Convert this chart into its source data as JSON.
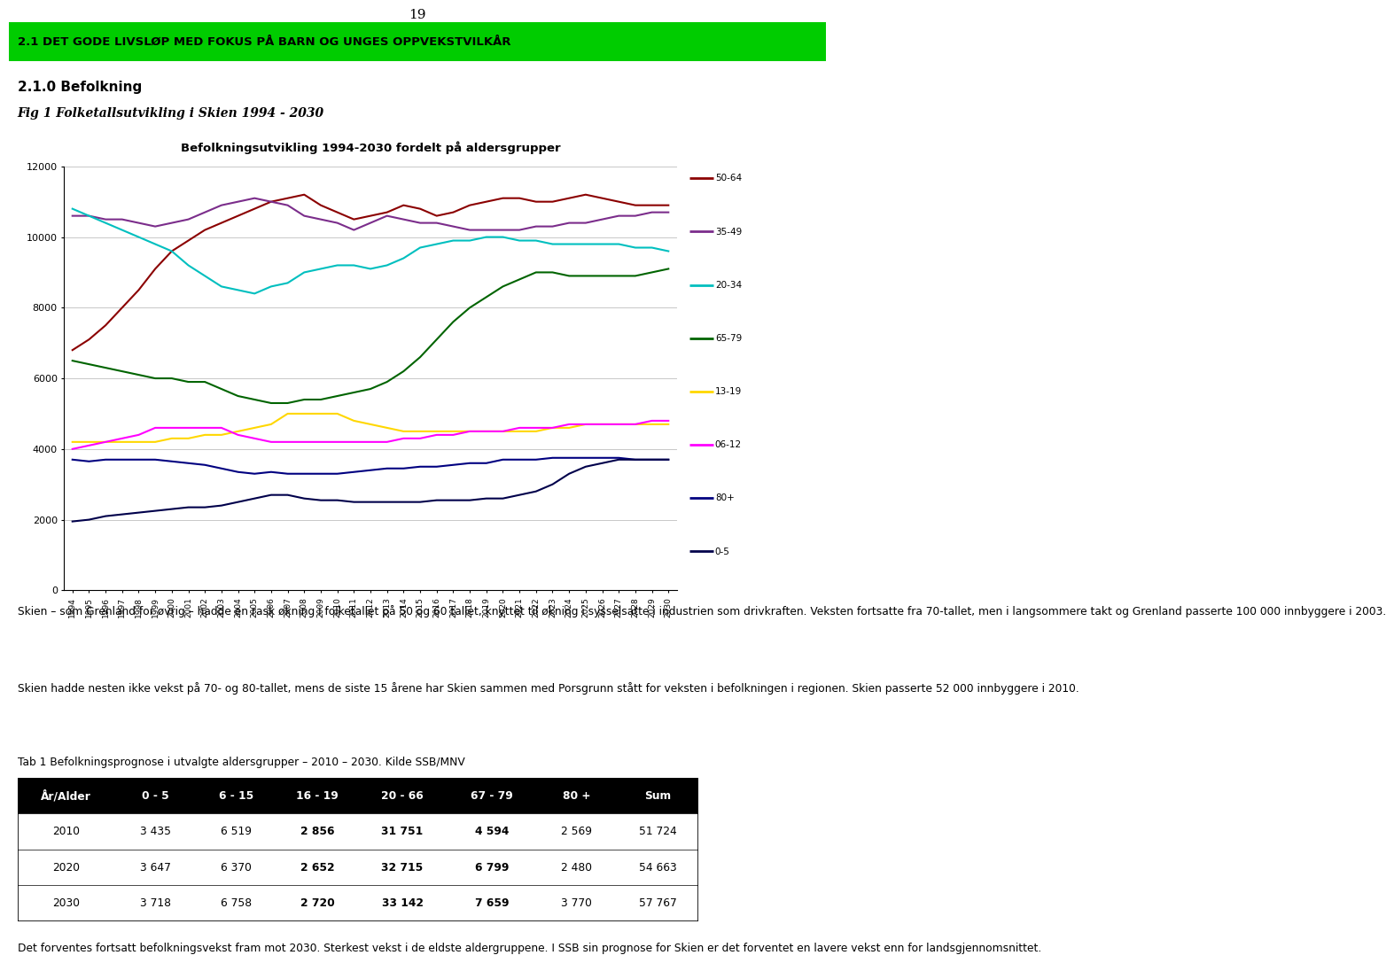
{
  "title": "Befolkningsutvikling 1994-2030 fordelt på aldersgrupper",
  "header": "2.1 DET GODE LIVSLØP MED FOKUS PÅ BARN OG UNGES OPPVEKSTVILKÅR",
  "subheader": "2.1.0 Befolkning",
  "fig_caption": "Fig 1 Folketallsutvikling i Skien 1994 - 2030",
  "years": [
    1994,
    1995,
    1996,
    1997,
    1998,
    1999,
    2000,
    2001,
    2002,
    2003,
    2004,
    2005,
    2006,
    2007,
    2008,
    2009,
    2010,
    2011,
    2012,
    2013,
    2014,
    2015,
    2016,
    2017,
    2018,
    2019,
    2020,
    2021,
    2022,
    2023,
    2024,
    2025,
    2026,
    2027,
    2028,
    2029,
    2030
  ],
  "series": {
    "50-64": {
      "color": "#8B0000",
      "values": [
        6800,
        7100,
        7500,
        8000,
        8500,
        9100,
        9600,
        9900,
        10200,
        10400,
        10600,
        10800,
        11000,
        11100,
        11200,
        10900,
        10700,
        10500,
        10600,
        10700,
        10900,
        10800,
        10600,
        10700,
        10900,
        11000,
        11100,
        11100,
        11000,
        11000,
        11100,
        11200,
        11100,
        11000,
        10900,
        10900,
        10900
      ]
    },
    "35-49": {
      "color": "#7B2D8B",
      "values": [
        10600,
        10600,
        10500,
        10500,
        10400,
        10300,
        10400,
        10500,
        10700,
        10900,
        11000,
        11100,
        11000,
        10900,
        10600,
        10500,
        10400,
        10200,
        10400,
        10600,
        10500,
        10400,
        10400,
        10300,
        10200,
        10200,
        10200,
        10200,
        10300,
        10300,
        10400,
        10400,
        10500,
        10600,
        10600,
        10700,
        10700
      ]
    },
    "20-34": {
      "color": "#00BFBF",
      "values": [
        10800,
        10600,
        10400,
        10200,
        10000,
        9800,
        9600,
        9200,
        8900,
        8600,
        8500,
        8400,
        8600,
        8700,
        9000,
        9100,
        9200,
        9200,
        9100,
        9200,
        9400,
        9700,
        9800,
        9900,
        9900,
        10000,
        10000,
        9900,
        9900,
        9800,
        9800,
        9800,
        9800,
        9800,
        9700,
        9700,
        9600
      ]
    },
    "65-79": {
      "color": "#006400",
      "values": [
        6500,
        6400,
        6300,
        6200,
        6100,
        6000,
        6000,
        5900,
        5900,
        5700,
        5500,
        5400,
        5300,
        5300,
        5400,
        5400,
        5500,
        5600,
        5700,
        5900,
        6200,
        6600,
        7100,
        7600,
        8000,
        8300,
        8600,
        8800,
        9000,
        9000,
        8900,
        8900,
        8900,
        8900,
        8900,
        9000,
        9100
      ]
    },
    "13-19": {
      "color": "#FFD700",
      "values": [
        4200,
        4200,
        4200,
        4200,
        4200,
        4200,
        4300,
        4300,
        4400,
        4400,
        4500,
        4600,
        4700,
        5000,
        5000,
        5000,
        5000,
        4800,
        4700,
        4600,
        4500,
        4500,
        4500,
        4500,
        4500,
        4500,
        4500,
        4500,
        4500,
        4600,
        4600,
        4700,
        4700,
        4700,
        4700,
        4700,
        4700
      ]
    },
    "06-12": {
      "color": "#FF00FF",
      "values": [
        4000,
        4100,
        4200,
        4300,
        4400,
        4600,
        4600,
        4600,
        4600,
        4600,
        4400,
        4300,
        4200,
        4200,
        4200,
        4200,
        4200,
        4200,
        4200,
        4200,
        4300,
        4300,
        4400,
        4400,
        4500,
        4500,
        4500,
        4600,
        4600,
        4600,
        4700,
        4700,
        4700,
        4700,
        4700,
        4800,
        4800
      ]
    },
    "80+": {
      "color": "#000080",
      "values": [
        3700,
        3650,
        3700,
        3700,
        3700,
        3700,
        3650,
        3600,
        3550,
        3450,
        3350,
        3300,
        3350,
        3300,
        3300,
        3300,
        3300,
        3350,
        3400,
        3450,
        3450,
        3500,
        3500,
        3550,
        3600,
        3600,
        3700,
        3700,
        3700,
        3750,
        3750,
        3750,
        3750,
        3750,
        3700,
        3700,
        3700
      ]
    },
    "0-5": {
      "color": "#00004B",
      "values": [
        1950,
        2000,
        2100,
        2150,
        2200,
        2250,
        2300,
        2350,
        2350,
        2400,
        2500,
        2600,
        2700,
        2700,
        2600,
        2550,
        2550,
        2500,
        2500,
        2500,
        2500,
        2500,
        2550,
        2550,
        2550,
        2600,
        2600,
        2700,
        2800,
        3000,
        3300,
        3500,
        3600,
        3700,
        3700,
        3700,
        3700
      ]
    }
  },
  "ylim": [
    0,
    12000
  ],
  "yticks": [
    0,
    2000,
    4000,
    6000,
    8000,
    10000,
    12000
  ],
  "paragraph1": "Skien – som Grenland for øvrig – hadde en rask økning i folketallet på 50 og 60 tallet, knyttet til økning i sysselsatte i industrien som drivkraften. Veksten fortsatte fra 70-tallet, men i langsommere takt og Grenland passerte 100 000 innbyggere i 2003.",
  "paragraph2": "Skien hadde nesten ikke vekst på 70- og 80-tallet, mens de siste 15 årene har Skien sammen med Porsgrunn stått for veksten i befolkningen i regionen. Skien passerte 52 000 innbyggere i 2010.",
  "tab_title": "Tab 1 Befolkningsprognose i utvalgte aldersgrupper – 2010 – 2030. Kilde SSB/MNV",
  "table_headers": [
    "År/Alder",
    "0 - 5",
    "6 - 15",
    "16 - 19",
    "20 - 66",
    "67 - 79",
    "80 +",
    "Sum"
  ],
  "table_data": [
    [
      "2010",
      "3 435",
      "6 519",
      "2 856",
      "31 751",
      "4 594",
      "2 569",
      "51 724"
    ],
    [
      "2020",
      "3 647",
      "6 370",
      "2 652",
      "32 715",
      "6 799",
      "2 480",
      "54 663"
    ],
    [
      "2030",
      "3 718",
      "6 758",
      "2 720",
      "33 142",
      "7 659",
      "3 770",
      "57 767"
    ]
  ],
  "table_bold_cols": [
    3,
    4,
    5
  ],
  "paragraph3": "Det forventes fortsatt befolkningsvekst fram mot 2030. Sterkest vekst i de eldste aldergruppene. I SSB sin prognose for Skien er det forventet en lavere vekst enn for landsgjennomsnittet.",
  "page_number": "19",
  "header_bg_color": "#00CC00",
  "header_text_color": "#000000",
  "page_bg": "#FFFFFF"
}
